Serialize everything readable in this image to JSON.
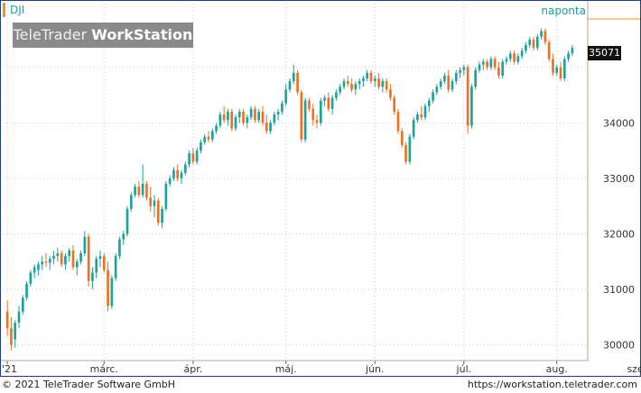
{
  "header": {
    "ticker": "DJI",
    "period": "naponta",
    "watermark_light": "TeleTrader",
    "watermark_bold": "WorkStation",
    "last_value": "35071"
  },
  "footer": {
    "copyright": "© 2021  TeleTrader Software GmbH",
    "site": "https://workstation.teletrader.com"
  },
  "colors": {
    "up": "#1aa39a",
    "down": "#f07020",
    "grid": "#cccccc",
    "border": "#1f3a93",
    "accent": "#f7941d"
  },
  "chart_data": {
    "type": "candlestick",
    "title": "",
    "ylim": [
      29750,
      36050
    ],
    "yticks": [
      30000,
      31000,
      32000,
      33000,
      34000
    ],
    "ytick_labels": [
      "30000",
      "31000",
      "32000",
      "33000",
      "34000"
    ],
    "xtick_labels": [
      {
        "label": "'21",
        "index": 0
      },
      {
        "label": "márc.",
        "index": 25
      },
      {
        "label": "ápr.",
        "index": 48
      },
      {
        "label": "máj.",
        "index": 72
      },
      {
        "label": "jún.",
        "index": 95
      },
      {
        "label": "júl.",
        "index": 118
      },
      {
        "label": "aug.",
        "index": 142
      },
      {
        "label": "szept.",
        "index": 164
      }
    ],
    "candles": [
      [
        30600,
        30800,
        30150,
        30300
      ],
      [
        30300,
        30500,
        29900,
        30000
      ],
      [
        30100,
        30450,
        29950,
        30400
      ],
      [
        30400,
        30700,
        30300,
        30600
      ],
      [
        30600,
        30900,
        30550,
        30850
      ],
      [
        30850,
        31150,
        30800,
        31100
      ],
      [
        31100,
        31350,
        31050,
        31300
      ],
      [
        31300,
        31450,
        31200,
        31400
      ],
      [
        31350,
        31500,
        31250,
        31450
      ],
      [
        31450,
        31600,
        31350,
        31500
      ],
      [
        31500,
        31650,
        31400,
        31480
      ],
      [
        31480,
        31600,
        31350,
        31550
      ],
      [
        31550,
        31700,
        31450,
        31600
      ],
      [
        31600,
        31750,
        31500,
        31650
      ],
      [
        31650,
        31700,
        31400,
        31450
      ],
      [
        31450,
        31650,
        31350,
        31600
      ],
      [
        31600,
        31750,
        31500,
        31700
      ],
      [
        31700,
        31800,
        31350,
        31400
      ],
      [
        31400,
        31550,
        31250,
        31500
      ],
      [
        31500,
        31700,
        31450,
        31650
      ],
      [
        31650,
        32050,
        31600,
        31950
      ],
      [
        31950,
        32000,
        31050,
        31150
      ],
      [
        31150,
        31400,
        31000,
        31300
      ],
      [
        31300,
        31600,
        31200,
        31550
      ],
      [
        31550,
        31700,
        31400,
        31600
      ],
      [
        31600,
        31650,
        31300,
        31350
      ],
      [
        31350,
        31500,
        30600,
        30700
      ],
      [
        30700,
        31250,
        30650,
        31200
      ],
      [
        31200,
        31650,
        31150,
        31600
      ],
      [
        31600,
        31950,
        31550,
        31900
      ],
      [
        31900,
        32050,
        31800,
        32000
      ],
      [
        32000,
        32500,
        31950,
        32450
      ],
      [
        32450,
        32750,
        32400,
        32700
      ],
      [
        32700,
        32900,
        32650,
        32850
      ],
      [
        32850,
        32950,
        32650,
        32700
      ],
      [
        32700,
        33250,
        32650,
        32900
      ],
      [
        32900,
        32950,
        32600,
        32650
      ],
      [
        32650,
        32850,
        32400,
        32500
      ],
      [
        32500,
        32700,
        32300,
        32600
      ],
      [
        32600,
        32650,
        32150,
        32200
      ],
      [
        32200,
        32500,
        32100,
        32450
      ],
      [
        32450,
        32950,
        32400,
        32900
      ],
      [
        32900,
        33050,
        32850,
        33000
      ],
      [
        33000,
        33200,
        32950,
        33150
      ],
      [
        33150,
        33250,
        32950,
        33000
      ],
      [
        33000,
        33150,
        32900,
        33100
      ],
      [
        33100,
        33300,
        33050,
        33250
      ],
      [
        33250,
        33500,
        33200,
        33450
      ],
      [
        33450,
        33550,
        33250,
        33300
      ],
      [
        33300,
        33550,
        33250,
        33500
      ],
      [
        33500,
        33700,
        33450,
        33650
      ],
      [
        33650,
        33800,
        33600,
        33750
      ],
      [
        33750,
        33850,
        33650,
        33700
      ],
      [
        33700,
        33900,
        33650,
        33850
      ],
      [
        33850,
        34000,
        33800,
        33950
      ],
      [
        33950,
        34200,
        33900,
        34150
      ],
      [
        34150,
        34300,
        34000,
        34050
      ],
      [
        34050,
        34250,
        33950,
        34200
      ],
      [
        34200,
        34250,
        33850,
        33900
      ],
      [
        33900,
        34150,
        33850,
        34100
      ],
      [
        34100,
        34250,
        34000,
        34200
      ],
      [
        34200,
        34250,
        33950,
        34000
      ],
      [
        34000,
        34150,
        33900,
        34100
      ],
      [
        34100,
        34300,
        34050,
        34250
      ],
      [
        34250,
        34300,
        34000,
        34050
      ],
      [
        34050,
        34250,
        34000,
        34200
      ],
      [
        34200,
        34300,
        33950,
        34000
      ],
      [
        34000,
        34150,
        33800,
        33850
      ],
      [
        33850,
        34050,
        33800,
        34000
      ],
      [
        34000,
        34200,
        33950,
        34150
      ],
      [
        34150,
        34250,
        34050,
        34200
      ],
      [
        34200,
        34400,
        34150,
        34350
      ],
      [
        34350,
        34700,
        34300,
        34600
      ],
      [
        34600,
        34800,
        34550,
        34750
      ],
      [
        34750,
        35050,
        34700,
        34900
      ],
      [
        34900,
        34950,
        34500,
        34550
      ],
      [
        34550,
        34600,
        33650,
        33700
      ],
      [
        33700,
        34450,
        33650,
        34400
      ],
      [
        34400,
        34450,
        34200,
        34250
      ],
      [
        34250,
        34350,
        33950,
        34050
      ],
      [
        34050,
        34150,
        33900,
        34000
      ],
      [
        34000,
        34450,
        33950,
        34400
      ],
      [
        34400,
        34500,
        34300,
        34450
      ],
      [
        34450,
        34550,
        34200,
        34250
      ],
      [
        34250,
        34500,
        34150,
        34450
      ],
      [
        34450,
        34600,
        34400,
        34550
      ],
      [
        34550,
        34700,
        34500,
        34650
      ],
      [
        34650,
        34800,
        34600,
        34750
      ],
      [
        34750,
        34850,
        34650,
        34700
      ],
      [
        34700,
        34800,
        34550,
        34600
      ],
      [
        34600,
        34750,
        34500,
        34700
      ],
      [
        34700,
        34800,
        34600,
        34750
      ],
      [
        34750,
        34850,
        34650,
        34800
      ],
      [
        34800,
        34950,
        34750,
        34900
      ],
      [
        34900,
        34950,
        34700,
        34750
      ],
      [
        34750,
        34850,
        34650,
        34800
      ],
      [
        34800,
        34900,
        34600,
        34650
      ],
      [
        34650,
        34800,
        34550,
        34750
      ],
      [
        34750,
        34800,
        34550,
        34600
      ],
      [
        34600,
        34700,
        34400,
        34450
      ],
      [
        34450,
        34500,
        34150,
        34200
      ],
      [
        34200,
        34250,
        33800,
        33850
      ],
      [
        33850,
        33900,
        33550,
        33600
      ],
      [
        33600,
        33650,
        33250,
        33300
      ],
      [
        33300,
        33800,
        33250,
        33750
      ],
      [
        33750,
        34100,
        33700,
        34050
      ],
      [
        34050,
        34200,
        34000,
        34150
      ],
      [
        34150,
        34300,
        34050,
        34100
      ],
      [
        34100,
        34350,
        34050,
        34300
      ],
      [
        34300,
        34450,
        34200,
        34400
      ],
      [
        34400,
        34600,
        34350,
        34550
      ],
      [
        34550,
        34700,
        34500,
        34650
      ],
      [
        34650,
        34800,
        34600,
        34750
      ],
      [
        34750,
        34900,
        34700,
        34850
      ],
      [
        34850,
        34950,
        34550,
        34600
      ],
      [
        34600,
        34800,
        34550,
        34750
      ],
      [
        34750,
        34950,
        34700,
        34900
      ],
      [
        34900,
        35000,
        34800,
        34950
      ],
      [
        34950,
        35050,
        34850,
        35000
      ],
      [
        35000,
        35050,
        33800,
        33950
      ],
      [
        33950,
        34700,
        33900,
        34650
      ],
      [
        34650,
        35000,
        34600,
        34950
      ],
      [
        34950,
        35100,
        34900,
        35050
      ],
      [
        35050,
        35150,
        34950,
        35100
      ],
      [
        35100,
        35150,
        34950,
        35000
      ],
      [
        35000,
        35200,
        34950,
        35150
      ],
      [
        35150,
        35200,
        34950,
        35000
      ],
      [
        35000,
        35100,
        34800,
        34850
      ],
      [
        34850,
        35150,
        34800,
        35100
      ],
      [
        35100,
        35200,
        35050,
        35150
      ],
      [
        35150,
        35300,
        35100,
        35250
      ],
      [
        35250,
        35300,
        35050,
        35100
      ],
      [
        35100,
        35250,
        35050,
        35200
      ],
      [
        35200,
        35350,
        35150,
        35300
      ],
      [
        35300,
        35450,
        35250,
        35400
      ],
      [
        35400,
        35550,
        35350,
        35500
      ],
      [
        35500,
        35550,
        35300,
        35350
      ],
      [
        35350,
        35600,
        35300,
        35550
      ],
      [
        35550,
        35700,
        35500,
        35650
      ],
      [
        35650,
        35700,
        35400,
        35450
      ],
      [
        35450,
        35500,
        35100,
        35150
      ],
      [
        35150,
        35250,
        34850,
        34900
      ],
      [
        34900,
        35050,
        34850,
        35000
      ],
      [
        35000,
        35100,
        34750,
        34800
      ],
      [
        34800,
        35200,
        34750,
        35150
      ],
      [
        35150,
        35300,
        35100,
        35250
      ],
      [
        35250,
        35400,
        35200,
        35350
      ]
    ]
  }
}
